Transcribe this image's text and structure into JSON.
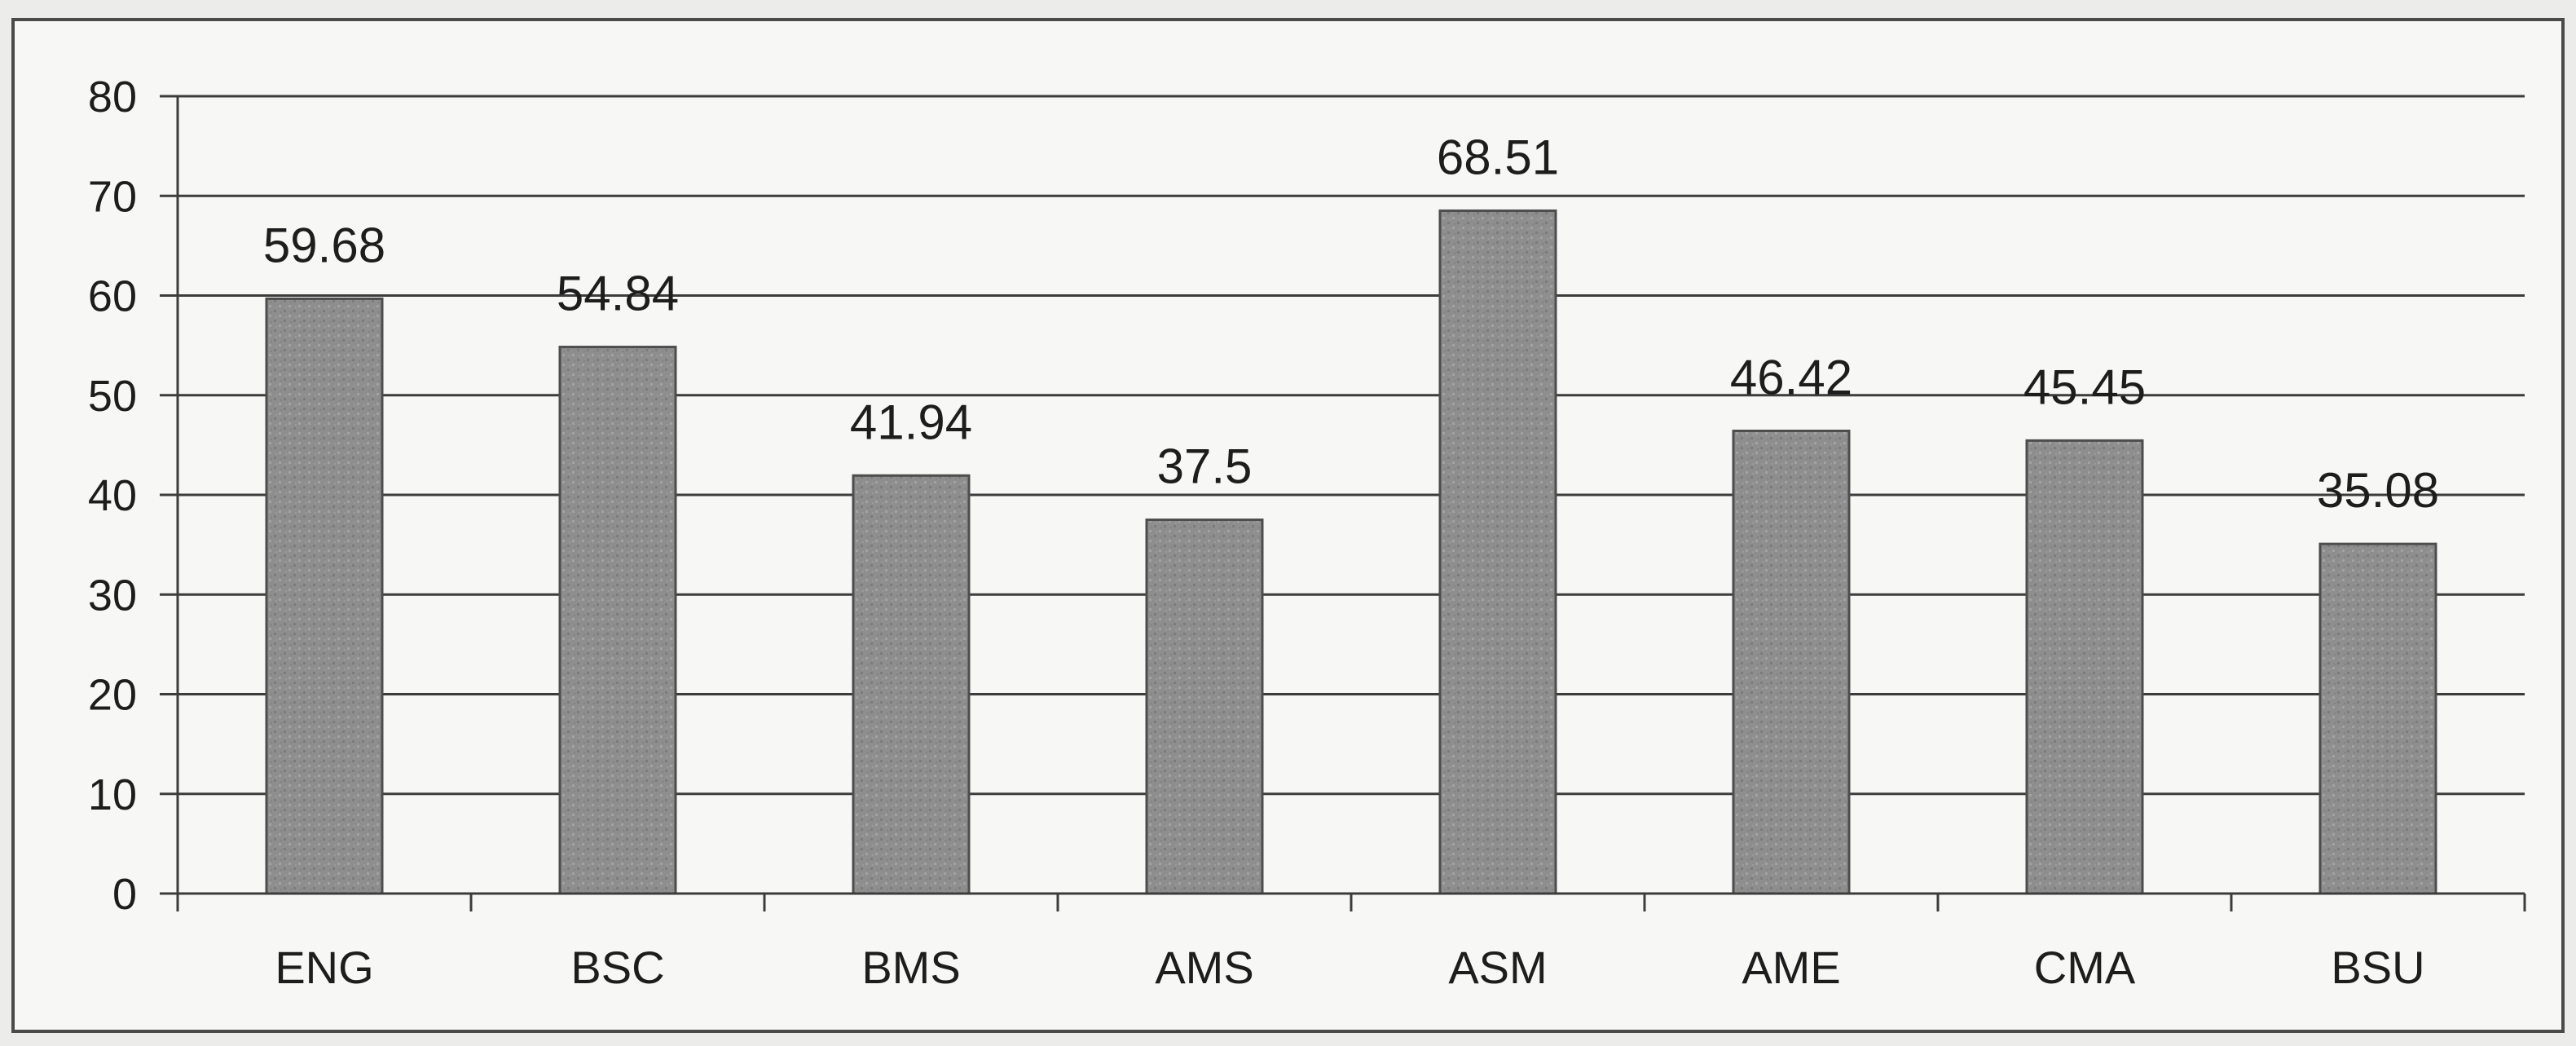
{
  "chart_data": {
    "type": "bar",
    "categories": [
      "ENG",
      "BSC",
      "BMS",
      "AMS",
      "ASM",
      "AME",
      "CMA",
      "BSU"
    ],
    "values": [
      59.68,
      54.84,
      41.94,
      37.5,
      68.51,
      46.42,
      45.45,
      35.08
    ],
    "data_labels": [
      "59.68",
      "54.84",
      "41.94",
      "37.5",
      "68.51",
      "46.42",
      "45.45",
      "35.08"
    ],
    "y_ticks": [
      "0",
      "10",
      "20",
      "30",
      "40",
      "50",
      "60",
      "70",
      "80"
    ],
    "ylim": [
      0,
      80
    ],
    "title": "",
    "xlabel": "",
    "ylabel": "",
    "grid": true,
    "legend": "none",
    "bar_color": "#8e8e8e"
  }
}
